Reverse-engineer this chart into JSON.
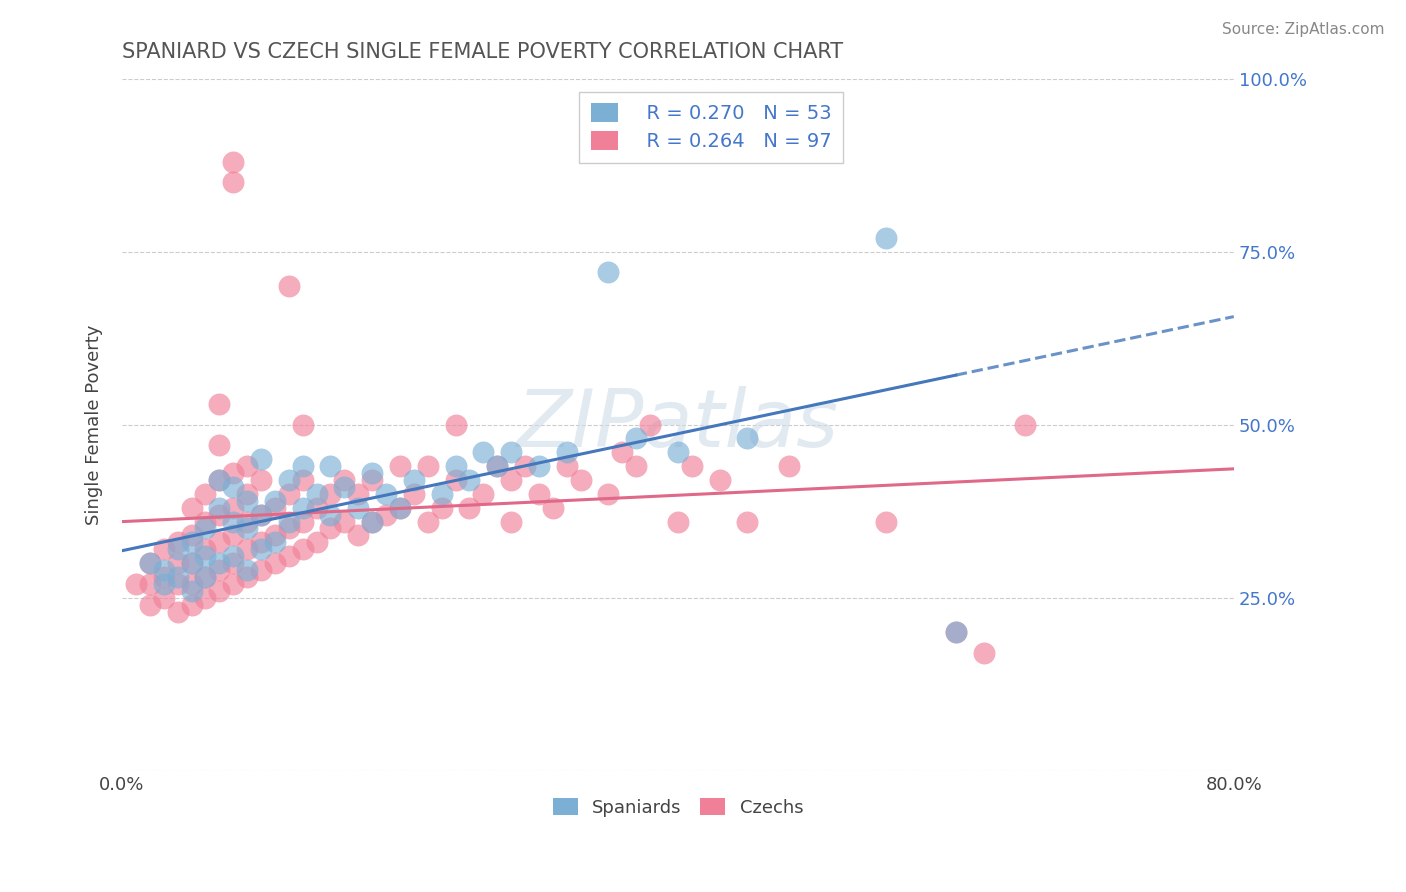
{
  "title": "SPANIARD VS CZECH SINGLE FEMALE POVERTY CORRELATION CHART",
  "source": "Source: ZipAtlas.com",
  "ylabel": "Single Female Poverty",
  "xlabel": "",
  "xlim": [
    0.0,
    0.8
  ],
  "ylim": [
    0.0,
    1.0
  ],
  "ytick_pos": [
    0.0,
    0.25,
    0.5,
    0.75,
    1.0
  ],
  "ytick_labels": [
    "",
    "25.0%",
    "50.0%",
    "75.0%",
    "100.0%"
  ],
  "xtick_pos": [
    0.0,
    0.2,
    0.4,
    0.6,
    0.8
  ],
  "xtick_labels": [
    "0.0%",
    "",
    "",
    "",
    "80.0%"
  ],
  "spaniard_color": "#7bafd4",
  "czech_color": "#f08098",
  "spaniard_R": 0.27,
  "spaniard_N": 53,
  "czech_R": 0.264,
  "czech_N": 97,
  "watermark": "ZIPatlas",
  "background_color": "#ffffff",
  "grid_color": "#cccccc",
  "title_color": "#555555",
  "spaniard_line_color": "#4477bb",
  "czech_line_color": "#e06888",
  "label_color": "#4477cc",
  "spaniard_points": [
    [
      0.02,
      0.3
    ],
    [
      0.03,
      0.27
    ],
    [
      0.03,
      0.29
    ],
    [
      0.04,
      0.28
    ],
    [
      0.04,
      0.32
    ],
    [
      0.05,
      0.26
    ],
    [
      0.05,
      0.3
    ],
    [
      0.05,
      0.33
    ],
    [
      0.06,
      0.28
    ],
    [
      0.06,
      0.31
    ],
    [
      0.06,
      0.35
    ],
    [
      0.07,
      0.3
    ],
    [
      0.07,
      0.38
    ],
    [
      0.07,
      0.42
    ],
    [
      0.08,
      0.31
    ],
    [
      0.08,
      0.36
    ],
    [
      0.08,
      0.41
    ],
    [
      0.09,
      0.29
    ],
    [
      0.09,
      0.35
    ],
    [
      0.09,
      0.39
    ],
    [
      0.1,
      0.32
    ],
    [
      0.1,
      0.37
    ],
    [
      0.1,
      0.45
    ],
    [
      0.11,
      0.33
    ],
    [
      0.11,
      0.39
    ],
    [
      0.12,
      0.36
    ],
    [
      0.12,
      0.42
    ],
    [
      0.13,
      0.38
    ],
    [
      0.13,
      0.44
    ],
    [
      0.14,
      0.4
    ],
    [
      0.15,
      0.37
    ],
    [
      0.15,
      0.44
    ],
    [
      0.16,
      0.41
    ],
    [
      0.17,
      0.38
    ],
    [
      0.18,
      0.36
    ],
    [
      0.18,
      0.43
    ],
    [
      0.19,
      0.4
    ],
    [
      0.2,
      0.38
    ],
    [
      0.21,
      0.42
    ],
    [
      0.23,
      0.4
    ],
    [
      0.24,
      0.44
    ],
    [
      0.25,
      0.42
    ],
    [
      0.26,
      0.46
    ],
    [
      0.27,
      0.44
    ],
    [
      0.28,
      0.46
    ],
    [
      0.3,
      0.44
    ],
    [
      0.32,
      0.46
    ],
    [
      0.35,
      0.72
    ],
    [
      0.37,
      0.48
    ],
    [
      0.4,
      0.46
    ],
    [
      0.45,
      0.48
    ],
    [
      0.55,
      0.77
    ],
    [
      0.6,
      0.2
    ]
  ],
  "czech_points": [
    [
      0.01,
      0.27
    ],
    [
      0.02,
      0.24
    ],
    [
      0.02,
      0.27
    ],
    [
      0.02,
      0.3
    ],
    [
      0.03,
      0.25
    ],
    [
      0.03,
      0.28
    ],
    [
      0.03,
      0.32
    ],
    [
      0.04,
      0.23
    ],
    [
      0.04,
      0.27
    ],
    [
      0.04,
      0.3
    ],
    [
      0.04,
      0.33
    ],
    [
      0.05,
      0.24
    ],
    [
      0.05,
      0.27
    ],
    [
      0.05,
      0.3
    ],
    [
      0.05,
      0.34
    ],
    [
      0.05,
      0.38
    ],
    [
      0.06,
      0.25
    ],
    [
      0.06,
      0.28
    ],
    [
      0.06,
      0.32
    ],
    [
      0.06,
      0.36
    ],
    [
      0.06,
      0.4
    ],
    [
      0.07,
      0.26
    ],
    [
      0.07,
      0.29
    ],
    [
      0.07,
      0.33
    ],
    [
      0.07,
      0.37
    ],
    [
      0.07,
      0.42
    ],
    [
      0.07,
      0.47
    ],
    [
      0.07,
      0.53
    ],
    [
      0.08,
      0.27
    ],
    [
      0.08,
      0.3
    ],
    [
      0.08,
      0.34
    ],
    [
      0.08,
      0.38
    ],
    [
      0.08,
      0.43
    ],
    [
      0.08,
      0.85
    ],
    [
      0.08,
      0.88
    ],
    [
      0.09,
      0.28
    ],
    [
      0.09,
      0.32
    ],
    [
      0.09,
      0.36
    ],
    [
      0.09,
      0.4
    ],
    [
      0.09,
      0.44
    ],
    [
      0.1,
      0.29
    ],
    [
      0.1,
      0.33
    ],
    [
      0.1,
      0.37
    ],
    [
      0.1,
      0.42
    ],
    [
      0.11,
      0.3
    ],
    [
      0.11,
      0.34
    ],
    [
      0.11,
      0.38
    ],
    [
      0.12,
      0.31
    ],
    [
      0.12,
      0.35
    ],
    [
      0.12,
      0.4
    ],
    [
      0.12,
      0.7
    ],
    [
      0.13,
      0.32
    ],
    [
      0.13,
      0.36
    ],
    [
      0.13,
      0.42
    ],
    [
      0.13,
      0.5
    ],
    [
      0.14,
      0.33
    ],
    [
      0.14,
      0.38
    ],
    [
      0.15,
      0.35
    ],
    [
      0.15,
      0.4
    ],
    [
      0.16,
      0.36
    ],
    [
      0.16,
      0.42
    ],
    [
      0.17,
      0.34
    ],
    [
      0.17,
      0.4
    ],
    [
      0.18,
      0.36
    ],
    [
      0.18,
      0.42
    ],
    [
      0.19,
      0.37
    ],
    [
      0.2,
      0.38
    ],
    [
      0.2,
      0.44
    ],
    [
      0.21,
      0.4
    ],
    [
      0.22,
      0.36
    ],
    [
      0.22,
      0.44
    ],
    [
      0.23,
      0.38
    ],
    [
      0.24,
      0.42
    ],
    [
      0.24,
      0.5
    ],
    [
      0.25,
      0.38
    ],
    [
      0.26,
      0.4
    ],
    [
      0.27,
      0.44
    ],
    [
      0.28,
      0.36
    ],
    [
      0.28,
      0.42
    ],
    [
      0.29,
      0.44
    ],
    [
      0.3,
      0.4
    ],
    [
      0.31,
      0.38
    ],
    [
      0.32,
      0.44
    ],
    [
      0.33,
      0.42
    ],
    [
      0.35,
      0.4
    ],
    [
      0.36,
      0.46
    ],
    [
      0.37,
      0.44
    ],
    [
      0.38,
      0.5
    ],
    [
      0.4,
      0.36
    ],
    [
      0.41,
      0.44
    ],
    [
      0.43,
      0.42
    ],
    [
      0.45,
      0.36
    ],
    [
      0.48,
      0.44
    ],
    [
      0.55,
      0.36
    ],
    [
      0.6,
      0.2
    ],
    [
      0.62,
      0.17
    ],
    [
      0.65,
      0.5
    ]
  ]
}
